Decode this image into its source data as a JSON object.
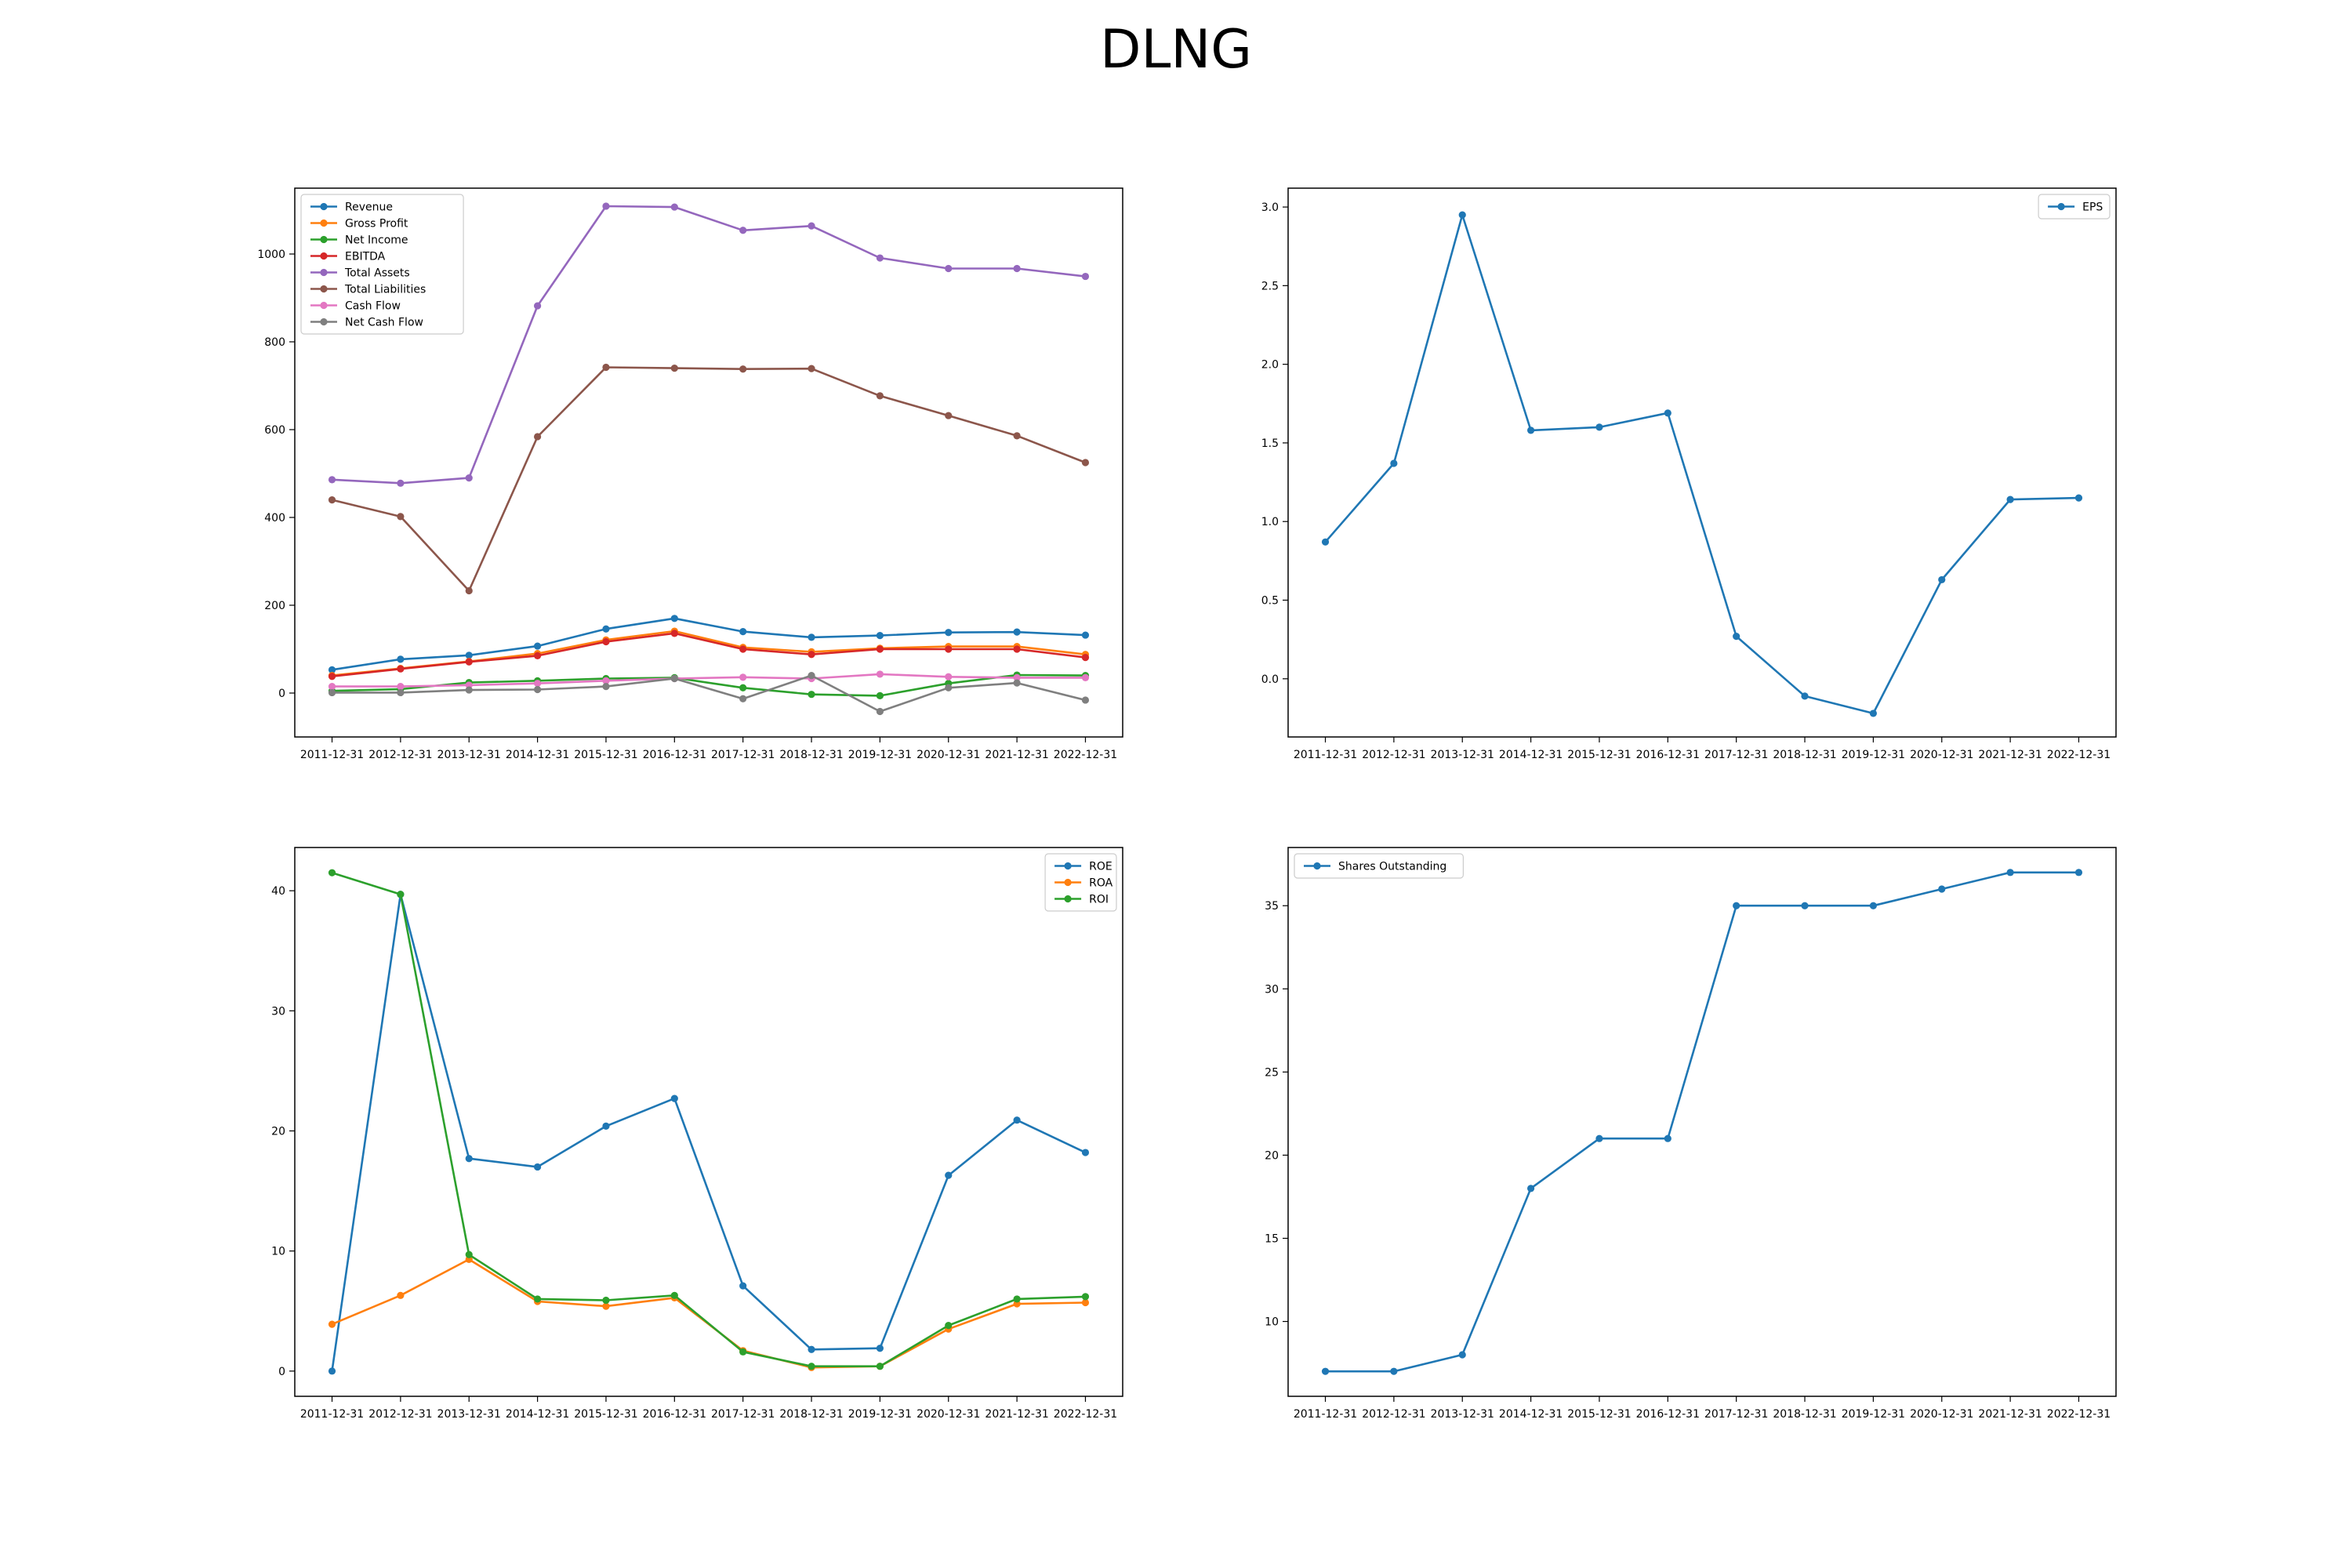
{
  "figure": {
    "title": "DLNG"
  },
  "colors": {
    "blue": "#1f77b4",
    "orange": "#ff7f0e",
    "green": "#2ca02c",
    "red": "#d62728",
    "purple": "#9467bd",
    "brown": "#8c564b",
    "pink": "#e377c2",
    "gray": "#7f7f7f"
  },
  "chart_data": [
    {
      "type": "line",
      "x": [
        "2011-12-31",
        "2012-12-31",
        "2013-12-31",
        "2014-12-31",
        "2015-12-31",
        "2016-12-31",
        "2017-12-31",
        "2018-12-31",
        "2019-12-31",
        "2020-12-31",
        "2021-12-31",
        "2022-12-31"
      ],
      "ylim": [
        -100,
        1150
      ],
      "yticks": [
        0,
        200,
        400,
        600,
        800,
        1000
      ],
      "legend_position": "upper-left",
      "series": [
        {
          "name": "Revenue",
          "color": "#1f77b4",
          "values": [
            53,
            77,
            86,
            107,
            146,
            170,
            140,
            127,
            131,
            138,
            139,
            132
          ]
        },
        {
          "name": "Gross Profit",
          "color": "#ff7f0e",
          "values": [
            40,
            56,
            72,
            90,
            121,
            141,
            104,
            94,
            102,
            106,
            106,
            88
          ]
        },
        {
          "name": "Net Income",
          "color": "#2ca02c",
          "values": [
            5,
            9,
            24,
            28,
            33,
            35,
            12,
            -3,
            -6,
            22,
            41,
            40
          ]
        },
        {
          "name": "EBITDA",
          "color": "#d62728",
          "values": [
            38,
            55,
            71,
            85,
            117,
            136,
            100,
            88,
            100,
            100,
            100,
            81
          ]
        },
        {
          "name": "Total Assets",
          "color": "#9467bd",
          "values": [
            486,
            478,
            490,
            882,
            1109,
            1107,
            1054,
            1064,
            991,
            967,
            967,
            949
          ]
        },
        {
          "name": "Total Liabilities",
          "color": "#8c564b",
          "values": [
            440,
            402,
            233,
            584,
            742,
            740,
            738,
            739,
            677,
            632,
            586,
            525
          ]
        },
        {
          "name": "Cash Flow",
          "color": "#e377c2",
          "values": [
            15,
            15,
            18,
            22,
            28,
            33,
            36,
            33,
            43,
            37,
            35,
            35
          ]
        },
        {
          "name": "Net Cash Flow",
          "color": "#7f7f7f",
          "values": [
            1,
            1,
            7,
            8,
            15,
            33,
            -13,
            40,
            -42,
            12,
            23,
            -16
          ]
        }
      ]
    },
    {
      "type": "line",
      "x": [
        "2011-12-31",
        "2012-12-31",
        "2013-12-31",
        "2014-12-31",
        "2015-12-31",
        "2016-12-31",
        "2017-12-31",
        "2018-12-31",
        "2019-12-31",
        "2020-12-31",
        "2021-12-31",
        "2022-12-31"
      ],
      "ylim": [
        -0.37,
        3.12
      ],
      "yticks": [
        0.0,
        0.5,
        1.0,
        1.5,
        2.0,
        2.5,
        3.0
      ],
      "legend_position": "upper-right",
      "series": [
        {
          "name": "EPS",
          "color": "#1f77b4",
          "values": [
            0.87,
            1.37,
            2.95,
            1.58,
            1.6,
            1.69,
            0.27,
            -0.11,
            -0.22,
            0.63,
            1.14,
            1.15
          ]
        }
      ]
    },
    {
      "type": "line",
      "x": [
        "2011-12-31",
        "2012-12-31",
        "2013-12-31",
        "2014-12-31",
        "2015-12-31",
        "2016-12-31",
        "2017-12-31",
        "2018-12-31",
        "2019-12-31",
        "2020-12-31",
        "2021-12-31",
        "2022-12-31"
      ],
      "ylim": [
        -2.1,
        43.6
      ],
      "yticks": [
        0,
        10,
        20,
        30,
        40
      ],
      "legend_position": "upper-right",
      "series": [
        {
          "name": "ROE",
          "color": "#1f77b4",
          "values": [
            0.0,
            39.7,
            17.7,
            17.0,
            20.4,
            22.7,
            7.1,
            1.8,
            1.9,
            16.3,
            20.9,
            18.2
          ]
        },
        {
          "name": "ROA",
          "color": "#ff7f0e",
          "values": [
            3.9,
            6.3,
            9.3,
            5.8,
            5.4,
            6.1,
            1.7,
            0.3,
            0.4,
            3.5,
            5.6,
            5.7
          ]
        },
        {
          "name": "ROI",
          "color": "#2ca02c",
          "values": [
            41.5,
            39.7,
            9.7,
            6.0,
            5.9,
            6.3,
            1.6,
            0.4,
            0.4,
            3.8,
            6.0,
            6.2
          ]
        }
      ]
    },
    {
      "type": "line",
      "x": [
        "2011-12-31",
        "2012-12-31",
        "2013-12-31",
        "2014-12-31",
        "2015-12-31",
        "2016-12-31",
        "2017-12-31",
        "2018-12-31",
        "2019-12-31",
        "2020-12-31",
        "2021-12-31",
        "2022-12-31"
      ],
      "ylim": [
        5.5,
        38.5
      ],
      "yticks": [
        10,
        15,
        20,
        25,
        30,
        35
      ],
      "legend_position": "upper-left",
      "series": [
        {
          "name": "Shares Outstanding",
          "color": "#1f77b4",
          "values": [
            7,
            7,
            8,
            18,
            21,
            21,
            35,
            35,
            35,
            36,
            37,
            37
          ]
        }
      ]
    }
  ]
}
